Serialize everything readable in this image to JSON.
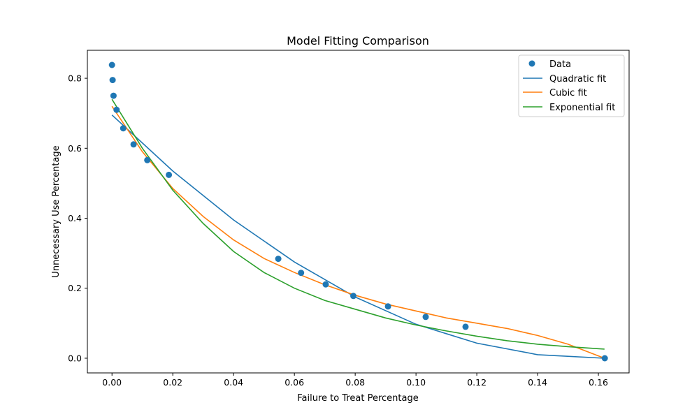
{
  "chart_data": {
    "type": "scatter",
    "title": "Model Fitting Comparison",
    "xlabel": "Failure to Treat Percentage",
    "ylabel": "Unnecessary Use Percentage",
    "xlim": [
      -0.0081,
      0.1701
    ],
    "ylim": [
      -0.042,
      0.88
    ],
    "xticks": [
      0.0,
      0.02,
      0.04,
      0.06,
      0.08,
      0.1,
      0.12,
      0.14,
      0.16
    ],
    "xtick_labels": [
      "0.00",
      "0.02",
      "0.04",
      "0.06",
      "0.08",
      "0.10",
      "0.12",
      "0.14",
      "0.16"
    ],
    "yticks": [
      0.0,
      0.2,
      0.4,
      0.6,
      0.8
    ],
    "ytick_labels": [
      "0.0",
      "0.2",
      "0.4",
      "0.6",
      "0.8"
    ],
    "grid": false,
    "legend_position": "top-right",
    "series": [
      {
        "name": "Data",
        "kind": "scatter",
        "color": "#1f77b4",
        "x": [
          0.0,
          0.0002,
          0.0005,
          0.0015,
          0.0037,
          0.0071,
          0.0116,
          0.0187,
          0.0547,
          0.0622,
          0.0703,
          0.0794,
          0.0908,
          0.1032,
          0.1163,
          0.1621
        ],
        "y": [
          0.838,
          0.795,
          0.75,
          0.71,
          0.657,
          0.611,
          0.566,
          0.524,
          0.284,
          0.244,
          0.211,
          0.178,
          0.148,
          0.118,
          0.09,
          0.0
        ]
      },
      {
        "name": "Quadratic fit",
        "kind": "line",
        "color": "#1f77b4",
        "x": [
          0.0,
          0.02,
          0.04,
          0.06,
          0.08,
          0.1,
          0.12,
          0.14,
          0.162
        ],
        "y": [
          0.695,
          0.535,
          0.395,
          0.275,
          0.175,
          0.097,
          0.043,
          0.01,
          0.0
        ]
      },
      {
        "name": "Cubic fit",
        "kind": "line",
        "color": "#ff7f0e",
        "x": [
          0.0,
          0.01,
          0.02,
          0.03,
          0.04,
          0.05,
          0.06,
          0.07,
          0.08,
          0.09,
          0.1,
          0.11,
          0.12,
          0.13,
          0.14,
          0.15,
          0.162
        ],
        "y": [
          0.72,
          0.59,
          0.485,
          0.405,
          0.338,
          0.285,
          0.245,
          0.21,
          0.18,
          0.155,
          0.135,
          0.115,
          0.1,
          0.085,
          0.065,
          0.04,
          0.0
        ]
      },
      {
        "name": "Exponential fit",
        "kind": "line",
        "color": "#2ca02c",
        "x": [
          0.0,
          0.01,
          0.02,
          0.03,
          0.04,
          0.05,
          0.06,
          0.07,
          0.08,
          0.09,
          0.1,
          0.11,
          0.12,
          0.13,
          0.14,
          0.15,
          0.162
        ],
        "y": [
          0.74,
          0.6,
          0.48,
          0.385,
          0.305,
          0.245,
          0.2,
          0.165,
          0.14,
          0.115,
          0.095,
          0.078,
          0.063,
          0.05,
          0.04,
          0.033,
          0.026
        ]
      }
    ]
  }
}
